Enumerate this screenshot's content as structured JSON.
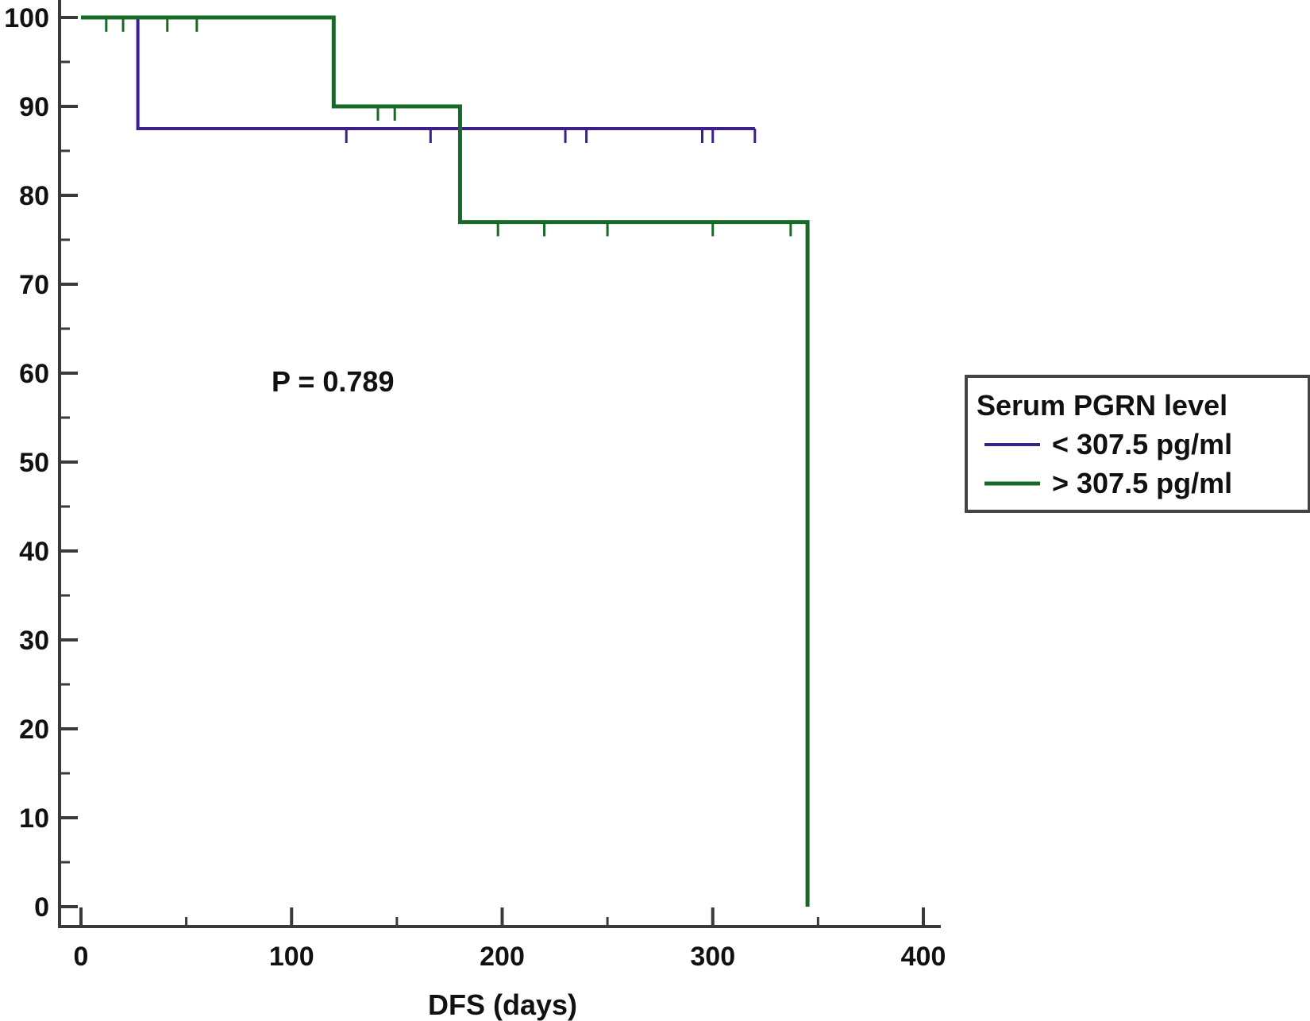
{
  "chart_data": {
    "type": "line",
    "subtype": "kaplan-meier step",
    "xlabel": "DFS (days)",
    "ylabel": "",
    "xlim": [
      0,
      400
    ],
    "ylim": [
      0,
      100
    ],
    "x_ticks": [
      0,
      100,
      200,
      300,
      400
    ],
    "y_ticks": [
      0,
      10,
      20,
      30,
      40,
      50,
      60,
      70,
      80,
      90,
      100
    ],
    "grid": false,
    "annotation": "P = 0.789",
    "legend": {
      "title": "Serum PGRN level",
      "placement": "right"
    },
    "series": [
      {
        "name": "< 307.5 pg/ml",
        "color": "#3d1f8c",
        "steps": [
          [
            0,
            100
          ],
          [
            27,
            87.5
          ],
          [
            320,
            87.5
          ]
        ],
        "censored": [
          126,
          166,
          230,
          240,
          295,
          300,
          320
        ]
      },
      {
        "name": "> 307.5 pg/ml",
        "color": "#17692a",
        "steps": [
          [
            0,
            100
          ],
          [
            120,
            90
          ],
          [
            180,
            77
          ],
          [
            345,
            0
          ]
        ],
        "censored": [
          12,
          20,
          41,
          55,
          141,
          149,
          198,
          220,
          250,
          300,
          337
        ]
      }
    ]
  }
}
